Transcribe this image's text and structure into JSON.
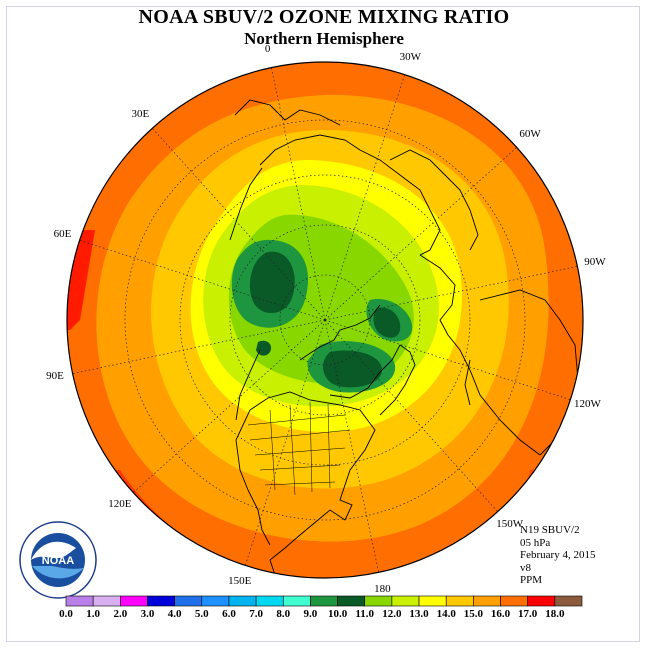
{
  "header": {
    "title": "NOAA SBUV/2 OZONE MIXING RATIO",
    "subtitle": "Northern Hemisphere"
  },
  "map": {
    "projection": "north polar stereographic",
    "longitude_labels": [
      {
        "text": "90E",
        "angle": 90
      },
      {
        "text": "60E",
        "angle": 60
      },
      {
        "text": "30E",
        "angle": 30
      },
      {
        "text": "0",
        "angle": 0
      },
      {
        "text": "30W",
        "angle": -30
      },
      {
        "text": "60W",
        "angle": -60
      },
      {
        "text": "90W",
        "angle": -90
      },
      {
        "text": "120W",
        "angle": -120
      },
      {
        "text": "150W",
        "angle": -150
      },
      {
        "text": "180",
        "angle": 180
      },
      {
        "text": "150E",
        "angle": 150
      },
      {
        "text": "120E",
        "angle": 120
      }
    ]
  },
  "info": {
    "satellite": "N19 SBUV/2",
    "level": "05 hPa",
    "date": "February 4, 2015",
    "version": "v8",
    "units": "PPM"
  },
  "logo": {
    "text": "NOAA"
  },
  "colorbar": {
    "min": 0.0,
    "max": 18.0,
    "step": 1.0,
    "tick_labels": [
      "0.0",
      "1.0",
      "2.0",
      "3.0",
      "4.0",
      "5.0",
      "6.0",
      "7.0",
      "8.0",
      "9.0",
      "10.0",
      "11.0",
      "12.0",
      "13.0",
      "14.0",
      "15.0",
      "16.0",
      "17.0",
      "18.0"
    ],
    "colors": [
      "#b87fe8",
      "#d8b0f0",
      "#ff00ff",
      "#0000d8",
      "#1e6fe8",
      "#1e90ff",
      "#00b4f0",
      "#00d8f0",
      "#40ffd0",
      "#1e9640",
      "#0a5a28",
      "#88d800",
      "#c8f000",
      "#ffff00",
      "#ffc800",
      "#ffa000",
      "#ff6e00",
      "#ff0000",
      "#8c5a3c"
    ]
  }
}
